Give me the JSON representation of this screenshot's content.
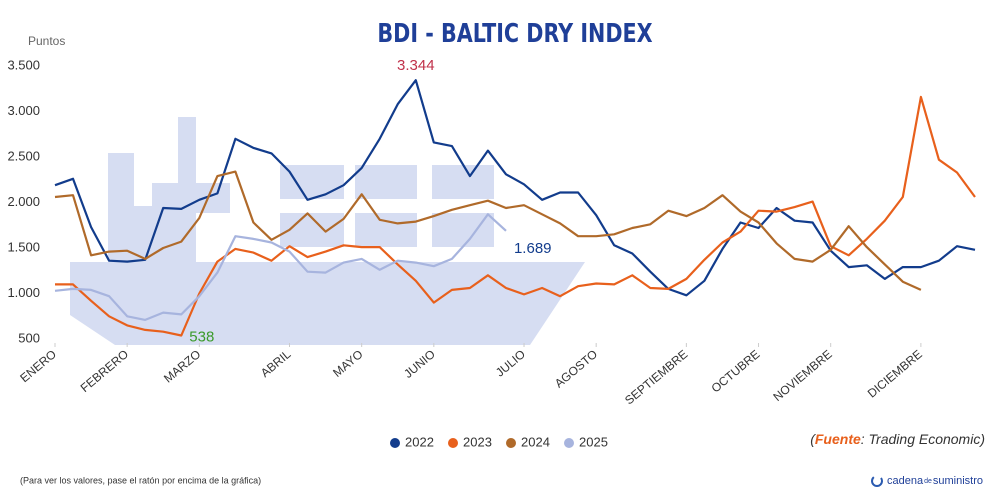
{
  "chart_data": {
    "type": "line",
    "title": "BDI - BALTIC DRY INDEX",
    "y_label": "Puntos",
    "x": [
      1,
      2,
      3,
      4,
      5,
      6,
      7,
      8,
      9,
      10,
      11,
      12,
      13,
      14,
      15,
      16,
      17,
      18,
      19,
      20,
      21,
      22,
      23,
      24,
      25,
      26,
      27,
      28,
      29,
      30,
      31,
      32,
      33,
      34,
      35,
      36,
      37,
      38,
      39,
      40,
      41,
      42,
      43,
      44,
      45,
      46,
      47,
      48,
      49,
      50,
      51,
      52
    ],
    "xlim": [
      1,
      52
    ],
    "xticks": [
      {
        "value": 1,
        "label": "ENERO"
      },
      {
        "value": 5,
        "label": "FEBRERO"
      },
      {
        "value": 9,
        "label": "MARZO"
      },
      {
        "value": 14,
        "label": "ABRIL"
      },
      {
        "value": 18,
        "label": "MAYO"
      },
      {
        "value": 22,
        "label": "JUNIO"
      },
      {
        "value": 27,
        "label": "JULIO"
      },
      {
        "value": 31,
        "label": "AGOSTO"
      },
      {
        "value": 36,
        "label": "SEPTIEMBRE"
      },
      {
        "value": 40,
        "label": "OCTUBRE"
      },
      {
        "value": 44,
        "label": "NOVIEMBRE"
      },
      {
        "value": 49,
        "label": "DICIEMBRE"
      }
    ],
    "ylim": [
      500,
      3500
    ],
    "yticks": [
      500,
      {
        "value": 1000,
        "label": "1.000"
      },
      {
        "value": 1500,
        "label": "1.500"
      },
      {
        "value": 2000,
        "label": "2.000"
      },
      {
        "value": 2500,
        "label": "2.500"
      },
      {
        "value": 3000,
        "label": "3.000"
      },
      {
        "value": 3500,
        "label": "3.500"
      }
    ],
    "grid": false,
    "legend": "bottom",
    "series": [
      {
        "name": "2022",
        "color": "#123c8c",
        "label_color": "#c0314a",
        "values": [
          2190,
          2260,
          1730,
          1360,
          1350,
          1370,
          1940,
          1930,
          2030,
          2100,
          2700,
          2600,
          2540,
          2340,
          2030,
          2090,
          2190,
          2380,
          2700,
          3080,
          3344,
          2660,
          2620,
          2290,
          2570,
          2310,
          2200,
          2030,
          2110,
          2110,
          1860,
          1530,
          1440,
          1240,
          1050,
          980,
          1140,
          1490,
          1780,
          1720,
          1940,
          1800,
          1780,
          1470,
          1290,
          1310,
          1160,
          1290,
          1290,
          1360,
          1520,
          1480
        ],
        "value_labels": [
          null,
          null,
          null,
          null,
          null,
          null,
          null,
          null,
          null,
          null,
          null,
          null,
          null,
          null,
          null,
          null,
          null,
          null,
          null,
          null,
          "3.344",
          null,
          null,
          null,
          null,
          null,
          null,
          null,
          null,
          null,
          null,
          null,
          null,
          null,
          null,
          null,
          null,
          null,
          null,
          null,
          null,
          null,
          null,
          null,
          null,
          null,
          null,
          null,
          null,
          null,
          null,
          null
        ]
      },
      {
        "name": "2023",
        "color": "#e8601c",
        "label_color": "#3a9a2a",
        "values": [
          1100,
          1100,
          920,
          750,
          650,
          600,
          580,
          538,
          1000,
          1350,
          1490,
          1450,
          1360,
          1520,
          1400,
          1460,
          1530,
          1510,
          1510,
          1320,
          1140,
          900,
          1040,
          1060,
          1200,
          1060,
          990,
          1060,
          970,
          1080,
          1110,
          1100,
          1200,
          1060,
          1050,
          1160,
          1370,
          1560,
          1680,
          1910,
          1900,
          1950,
          2010,
          1520,
          1420,
          1600,
          1800,
          2060,
          3160,
          2470,
          2330,
          2060
        ],
        "value_labels": [
          null,
          null,
          null,
          null,
          null,
          null,
          null,
          "538",
          null,
          null,
          null,
          null,
          null,
          null,
          null,
          null,
          null,
          null,
          null,
          null,
          null,
          null,
          null,
          null,
          null,
          null,
          null,
          null,
          null,
          null,
          null,
          null,
          null,
          null,
          null,
          null,
          null,
          null,
          null,
          null,
          null,
          null,
          null,
          null,
          null,
          null,
          null,
          null,
          null,
          null,
          null,
          null
        ]
      },
      {
        "name": "2024",
        "color": "#b06a2a",
        "values": [
          2060,
          2080,
          1420,
          1460,
          1470,
          1380,
          1500,
          1570,
          1830,
          2290,
          2340,
          1780,
          1590,
          1700,
          1880,
          1680,
          1820,
          2090,
          1810,
          1770,
          1790,
          1850,
          1920,
          1970,
          2020,
          1940,
          1970,
          1870,
          1770,
          1630,
          1630,
          1650,
          1720,
          1760,
          1910,
          1850,
          1940,
          2080,
          1900,
          1780,
          1550,
          1380,
          1350,
          1480,
          1740,
          1510,
          1320,
          1130,
          1040,
          null,
          null,
          null
        ]
      },
      {
        "name": "2025",
        "color": "#a7b4de",
        "label_color": "#123c8c",
        "values": [
          1030,
          1050,
          1040,
          970,
          750,
          710,
          790,
          770,
          970,
          1230,
          1630,
          1600,
          1560,
          1460,
          1240,
          1230,
          1340,
          1380,
          1260,
          1360,
          1340,
          1300,
          1380,
          1600,
          1870,
          1689,
          null,
          null,
          null,
          null,
          null,
          null,
          null,
          null,
          null,
          null,
          null,
          null,
          null,
          null,
          null,
          null,
          null,
          null,
          null,
          null,
          null,
          null,
          null,
          null,
          null,
          null
        ],
        "value_labels": [
          null,
          null,
          null,
          null,
          null,
          null,
          null,
          null,
          null,
          null,
          null,
          null,
          null,
          null,
          null,
          null,
          null,
          null,
          null,
          null,
          null,
          null,
          null,
          null,
          null,
          "1.689",
          null,
          null,
          null,
          null,
          null,
          null,
          null,
          null,
          null,
          null,
          null,
          null,
          null,
          null,
          null,
          null,
          null,
          null,
          null,
          null,
          null,
          null,
          null,
          null,
          null,
          null
        ]
      }
    ],
    "source": {
      "open": "(",
      "label": "Fuente",
      "text": ": Trading Economic)"
    },
    "footnote": "(Para ver los valores, pase el ratón por encima de la gráfica)",
    "logo": {
      "a": "cadena",
      "b": "de",
      "c": "suministro"
    }
  }
}
